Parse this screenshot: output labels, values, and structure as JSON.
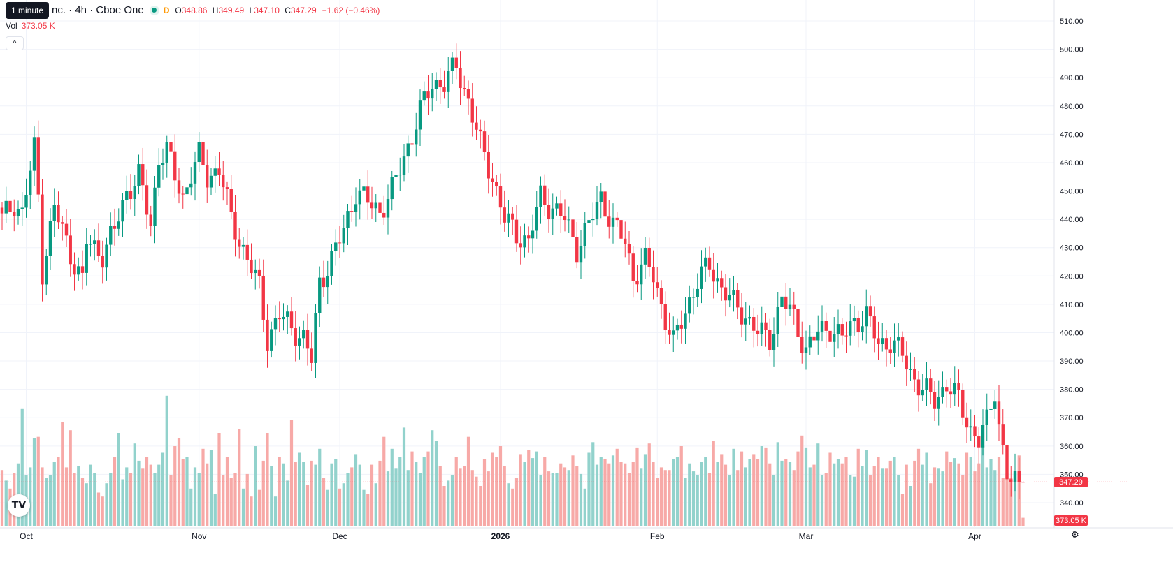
{
  "legend": {
    "tooltip": "1 minute",
    "symbol": "nc. · 4h · Cboe One",
    "d_badge": "D",
    "open_label": "O",
    "open": "348.86",
    "high_label": "H",
    "high": "349.49",
    "low_label": "L",
    "low": "347.10",
    "close_label": "C",
    "close": "347.29",
    "change": "−1.62 (−0.46%)",
    "vol_label": "Vol",
    "vol_value": "373.05 K",
    "collapse_icon": "chevron-up-icon"
  },
  "price_tag": "347.29",
  "volume_tag": "373.05 K",
  "logo": "TV",
  "colors": {
    "up": "#089981",
    "down": "#f23645",
    "up_vol": "#92d2cc",
    "down_vol": "#f7a9a7",
    "grid": "#f0f3fa"
  },
  "chart_data": {
    "type": "candlestick",
    "y_ticks": [
      "510.00",
      "500.00",
      "490.00",
      "480.00",
      "470.00",
      "460.00",
      "450.00",
      "440.00",
      "430.00",
      "420.00",
      "410.00",
      "400.00",
      "390.00",
      "380.00",
      "370.00",
      "360.00",
      "350.00",
      "340.00"
    ],
    "ylim": [
      336,
      512
    ],
    "x_labels": [
      {
        "label": "Oct",
        "index": 6
      },
      {
        "label": "Nov",
        "index": 49
      },
      {
        "label": "Dec",
        "index": 84
      },
      {
        "label": "2026",
        "index": 124
      },
      {
        "label": "Feb",
        "index": 163
      },
      {
        "label": "Mar",
        "index": 200
      },
      {
        "label": "Apr",
        "index": 242
      }
    ],
    "last_price": 347.29,
    "anchors": [
      [
        0,
        440
      ],
      [
        3,
        446
      ],
      [
        5,
        442
      ],
      [
        7,
        457
      ],
      [
        8,
        465
      ],
      [
        9,
        448
      ],
      [
        10,
        422
      ],
      [
        13,
        444
      ],
      [
        17,
        428
      ],
      [
        20,
        418
      ],
      [
        21,
        432
      ],
      [
        25,
        428
      ],
      [
        28,
        436
      ],
      [
        31,
        450
      ],
      [
        34,
        455
      ],
      [
        37,
        438
      ],
      [
        39,
        462
      ],
      [
        41,
        464
      ],
      [
        43,
        455
      ],
      [
        45,
        448
      ],
      [
        47,
        456
      ],
      [
        49,
        462
      ],
      [
        51,
        455
      ],
      [
        54,
        458
      ],
      [
        57,
        440
      ],
      [
        61,
        426
      ],
      [
        64,
        416
      ],
      [
        66,
        398
      ],
      [
        69,
        406
      ],
      [
        72,
        402
      ],
      [
        75,
        398
      ],
      [
        77,
        390
      ],
      [
        79,
        418
      ],
      [
        82,
        426
      ],
      [
        85,
        436
      ],
      [
        88,
        450
      ],
      [
        91,
        446
      ],
      [
        94,
        443
      ],
      [
        97,
        450
      ],
      [
        101,
        466
      ],
      [
        104,
        478
      ],
      [
        107,
        488
      ],
      [
        110,
        488
      ],
      [
        113,
        494
      ],
      [
        116,
        482
      ],
      [
        119,
        466
      ],
      [
        122,
        455
      ],
      [
        125,
        440
      ],
      [
        128,
        435
      ],
      [
        131,
        432
      ],
      [
        134,
        448
      ],
      [
        137,
        444
      ],
      [
        140,
        440
      ],
      [
        143,
        430
      ],
      [
        146,
        438
      ],
      [
        149,
        448
      ],
      [
        152,
        438
      ],
      [
        155,
        432
      ],
      [
        157,
        420
      ],
      [
        160,
        425
      ],
      [
        162,
        420
      ],
      [
        165,
        405
      ],
      [
        167,
        396
      ],
      [
        170,
        408
      ],
      [
        173,
        418
      ],
      [
        176,
        424
      ],
      [
        179,
        416
      ],
      [
        182,
        410
      ],
      [
        185,
        406
      ],
      [
        188,
        400
      ],
      [
        191,
        398
      ],
      [
        194,
        412
      ],
      [
        197,
        405
      ],
      [
        200,
        394
      ],
      [
        203,
        400
      ],
      [
        206,
        402
      ],
      [
        209,
        398
      ],
      [
        212,
        404
      ],
      [
        215,
        406
      ],
      [
        218,
        396
      ],
      [
        221,
        397
      ],
      [
        224,
        392
      ],
      [
        226,
        386
      ],
      [
        229,
        380
      ],
      [
        232,
        376
      ],
      [
        235,
        382
      ],
      [
        238,
        376
      ],
      [
        241,
        366
      ],
      [
        243,
        362
      ],
      [
        245,
        368
      ],
      [
        247,
        380
      ],
      [
        248,
        368
      ],
      [
        250,
        350
      ],
      [
        251,
        347
      ]
    ],
    "volume": [
      42,
      34,
      28,
      40,
      47,
      88,
      38,
      44,
      66,
      67,
      44,
      36,
      38,
      48,
      52,
      78,
      44,
      72,
      40,
      45,
      36,
      32,
      46,
      40,
      25,
      22,
      32,
      40,
      52,
      70,
      35,
      44,
      40,
      62,
      49,
      43,
      52,
      46,
      40,
      46,
      55,
      98,
      38,
      60,
      66,
      50,
      52,
      28,
      44,
      40,
      58,
      47,
      57,
      24,
      70,
      38,
      52,
      36,
      40,
      73,
      28,
      39,
      22,
      60,
      27,
      49,
      70,
      45,
      22,
      52,
      47,
      34,
      80,
      48,
      55,
      48,
      31,
      49,
      46,
      58,
      36,
      27,
      47,
      50,
      28,
      32,
      40,
      44,
      54,
      46,
      27,
      24,
      46,
      32,
      49,
      67,
      41,
      58,
      43,
      52,
      74,
      42,
      56,
      48,
      40,
      52,
      56,
      72,
      64,
      45,
      30,
      34,
      38,
      52,
      43,
      45,
      67,
      42,
      37,
      30,
      50,
      41,
      55,
      52,
      60,
      45,
      32,
      28,
      36,
      54,
      48,
      57,
      51,
      56,
      38,
      52,
      41,
      40,
      40,
      47,
      44,
      42,
      53,
      45,
      39,
      28,
      55,
      63,
      46,
      52,
      50,
      47,
      53,
      58,
      48,
      47,
      40,
      48,
      59,
      43,
      54,
      62,
      48,
      36,
      44,
      42,
      42,
      50,
      52,
      60,
      36,
      47,
      41,
      38,
      48,
      52,
      40,
      64,
      48,
      54,
      46,
      38,
      58,
      42,
      56,
      44,
      50,
      54,
      50,
      60,
      59,
      47,
      38,
      63,
      49,
      50,
      48,
      42,
      56,
      68,
      59,
      44,
      46,
      62,
      38,
      40,
      55,
      47,
      50,
      47,
      52,
      38,
      37,
      58,
      45,
      57,
      38,
      45,
      52,
      43,
      43,
      49,
      52,
      38,
      24,
      46,
      30,
      49,
      58,
      46,
      55,
      32,
      44,
      43,
      41,
      56,
      48,
      51,
      47,
      38,
      55,
      52,
      41,
      47,
      60,
      44,
      50,
      42,
      52,
      36,
      40,
      36,
      40,
      53,
      6
    ]
  }
}
